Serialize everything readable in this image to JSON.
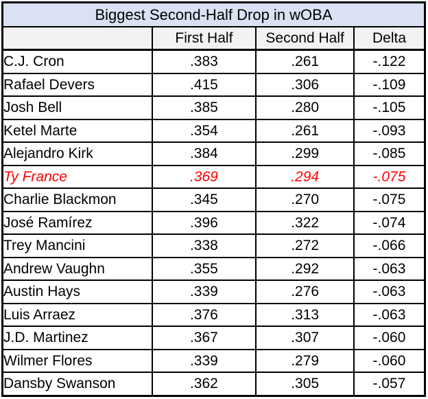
{
  "table": {
    "title": "Biggest Second-Half Drop in wOBA",
    "headers": {
      "name": "",
      "first_half": "First Half",
      "second_half": "Second Half",
      "delta": "Delta"
    },
    "rows": [
      {
        "name": "C.J. Cron",
        "first_half": ".383",
        "second_half": ".261",
        "delta": "-.122",
        "highlight": false
      },
      {
        "name": "Rafael Devers",
        "first_half": ".415",
        "second_half": ".306",
        "delta": "-.109",
        "highlight": false
      },
      {
        "name": "Josh Bell",
        "first_half": ".385",
        "second_half": ".280",
        "delta": "-.105",
        "highlight": false
      },
      {
        "name": "Ketel Marte",
        "first_half": ".354",
        "second_half": ".261",
        "delta": "-.093",
        "highlight": false
      },
      {
        "name": "Alejandro Kirk",
        "first_half": ".384",
        "second_half": ".299",
        "delta": "-.085",
        "highlight": false
      },
      {
        "name": "Ty France",
        "first_half": ".369",
        "second_half": ".294",
        "delta": "-.075",
        "highlight": true
      },
      {
        "name": "Charlie Blackmon",
        "first_half": ".345",
        "second_half": ".270",
        "delta": "-.075",
        "highlight": false
      },
      {
        "name": "José Ramírez",
        "first_half": ".396",
        "second_half": ".322",
        "delta": "-.074",
        "highlight": false
      },
      {
        "name": "Trey Mancini",
        "first_half": ".338",
        "second_half": ".272",
        "delta": "-.066",
        "highlight": false
      },
      {
        "name": "Andrew Vaughn",
        "first_half": ".355",
        "second_half": ".292",
        "delta": "-.063",
        "highlight": false
      },
      {
        "name": "Austin Hays",
        "first_half": ".339",
        "second_half": ".276",
        "delta": "-.063",
        "highlight": false
      },
      {
        "name": "Luis Arraez",
        "first_half": ".376",
        "second_half": ".313",
        "delta": "-.063",
        "highlight": false
      },
      {
        "name": "J.D. Martinez",
        "first_half": ".367",
        "second_half": ".307",
        "delta": "-.060",
        "highlight": false
      },
      {
        "name": "Wilmer Flores",
        "first_half": ".339",
        "second_half": ".279",
        "delta": "-.060",
        "highlight": false
      },
      {
        "name": "Dansby Swanson",
        "first_half": ".362",
        "second_half": ".305",
        "delta": "-.057",
        "highlight": false
      }
    ]
  },
  "colors": {
    "title-bg": "#d9e1f2",
    "header-bg": "#f2f2f2",
    "highlight-text": "#ff0000",
    "border": "#000000",
    "text": "#000000"
  },
  "chart_data": {
    "type": "table",
    "title": "Biggest Second-Half Drop in wOBA",
    "columns": [
      "",
      "First Half",
      "Second Half",
      "Delta"
    ],
    "rows": [
      [
        "C.J. Cron",
        0.383,
        0.261,
        -0.122
      ],
      [
        "Rafael Devers",
        0.415,
        0.306,
        -0.109
      ],
      [
        "Josh Bell",
        0.385,
        0.28,
        -0.105
      ],
      [
        "Ketel Marte",
        0.354,
        0.261,
        -0.093
      ],
      [
        "Alejandro Kirk",
        0.384,
        0.299,
        -0.085
      ],
      [
        "Ty France",
        0.369,
        0.294,
        -0.075
      ],
      [
        "Charlie Blackmon",
        0.345,
        0.27,
        -0.075
      ],
      [
        "José Ramírez",
        0.396,
        0.322,
        -0.074
      ],
      [
        "Trey Mancini",
        0.338,
        0.272,
        -0.066
      ],
      [
        "Andrew Vaughn",
        0.355,
        0.292,
        -0.063
      ],
      [
        "Austin Hays",
        0.339,
        0.276,
        -0.063
      ],
      [
        "Luis Arraez",
        0.376,
        0.313,
        -0.063
      ],
      [
        "J.D. Martinez",
        0.367,
        0.307,
        -0.06
      ],
      [
        "Wilmer Flores",
        0.339,
        0.279,
        -0.06
      ],
      [
        "Dansby Swanson",
        0.362,
        0.305,
        -0.057
      ]
    ],
    "highlighted_row": "Ty France"
  }
}
